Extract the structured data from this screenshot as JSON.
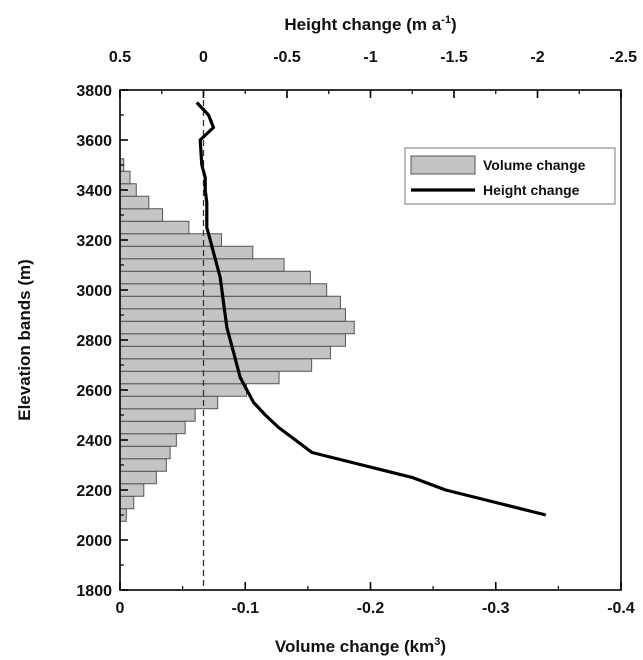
{
  "chart_data": {
    "type": "bar",
    "orientation": "horizontal",
    "dual_x_axes": true,
    "y_axis": {
      "label": "Elevation bands (m)",
      "ylim": [
        1800,
        3800
      ],
      "ticks": [
        1800,
        2000,
        2200,
        2400,
        2600,
        2800,
        3000,
        3200,
        3400,
        3600,
        3800
      ]
    },
    "bottom_axis": {
      "label": "Volume change (km³)",
      "label_parts": {
        "main": "Volume change (km",
        "sup": "3",
        "end": ")"
      },
      "xlim": [
        0,
        -0.4
      ],
      "ticks": [
        0,
        -0.1,
        -0.2,
        -0.3,
        -0.4
      ],
      "tick_labels": [
        "0",
        "-0.1",
        "-0.2",
        "-0.3",
        "-0.4"
      ]
    },
    "top_axis": {
      "label": "Height change (m a⁻¹)",
      "label_parts": {
        "main": "Height change (m a",
        "sup": "-1",
        "end": ")"
      },
      "xlim": [
        0.5,
        -2.5
      ],
      "ticks": [
        0.5,
        0,
        -0.5,
        -1,
        -1.5,
        -2,
        -2.5
      ],
      "tick_labels": [
        "0.5",
        "0",
        "-0.5",
        "-1",
        "-1.5",
        "-2",
        "-2.5"
      ]
    },
    "series": [
      {
        "name": "Volume change",
        "kind": "bar",
        "color": "#c4c4c4",
        "band_width": 50,
        "points": [
          {
            "y": 2100,
            "x": -0.005
          },
          {
            "y": 2150,
            "x": -0.011
          },
          {
            "y": 2200,
            "x": -0.019
          },
          {
            "y": 2250,
            "x": -0.029
          },
          {
            "y": 2300,
            "x": -0.037
          },
          {
            "y": 2350,
            "x": -0.04
          },
          {
            "y": 2400,
            "x": -0.045
          },
          {
            "y": 2450,
            "x": -0.052
          },
          {
            "y": 2500,
            "x": -0.06
          },
          {
            "y": 2550,
            "x": -0.078
          },
          {
            "y": 2600,
            "x": -0.101
          },
          {
            "y": 2650,
            "x": -0.127
          },
          {
            "y": 2700,
            "x": -0.153
          },
          {
            "y": 2750,
            "x": -0.168
          },
          {
            "y": 2800,
            "x": -0.18
          },
          {
            "y": 2850,
            "x": -0.187
          },
          {
            "y": 2900,
            "x": -0.18
          },
          {
            "y": 2950,
            "x": -0.176
          },
          {
            "y": 3000,
            "x": -0.165
          },
          {
            "y": 3050,
            "x": -0.152
          },
          {
            "y": 3100,
            "x": -0.131
          },
          {
            "y": 3150,
            "x": -0.106
          },
          {
            "y": 3200,
            "x": -0.081
          },
          {
            "y": 3250,
            "x": -0.055
          },
          {
            "y": 3300,
            "x": -0.034
          },
          {
            "y": 3350,
            "x": -0.023
          },
          {
            "y": 3400,
            "x": -0.013
          },
          {
            "y": 3450,
            "x": -0.008
          },
          {
            "y": 3500,
            "x": -0.003
          }
        ]
      },
      {
        "name": "Height change",
        "kind": "line",
        "color": "#000000",
        "points": [
          {
            "y": 2100,
            "x": -2.05
          },
          {
            "y": 2150,
            "x": -1.75
          },
          {
            "y": 2200,
            "x": -1.45
          },
          {
            "y": 2250,
            "x": -1.25
          },
          {
            "y": 2300,
            "x": -0.95
          },
          {
            "y": 2350,
            "x": -0.65
          },
          {
            "y": 2400,
            "x": -0.55
          },
          {
            "y": 2450,
            "x": -0.45
          },
          {
            "y": 2500,
            "x": -0.37
          },
          {
            "y": 2550,
            "x": -0.3
          },
          {
            "y": 2600,
            "x": -0.26
          },
          {
            "y": 2650,
            "x": -0.22
          },
          {
            "y": 2700,
            "x": -0.2
          },
          {
            "y": 2750,
            "x": -0.18
          },
          {
            "y": 2800,
            "x": -0.16
          },
          {
            "y": 2850,
            "x": -0.14
          },
          {
            "y": 2900,
            "x": -0.13
          },
          {
            "y": 2950,
            "x": -0.12
          },
          {
            "y": 3000,
            "x": -0.11
          },
          {
            "y": 3050,
            "x": -0.1
          },
          {
            "y": 3100,
            "x": -0.08
          },
          {
            "y": 3150,
            "x": -0.06
          },
          {
            "y": 3200,
            "x": -0.04
          },
          {
            "y": 3250,
            "x": -0.02
          },
          {
            "y": 3300,
            "x": -0.02
          },
          {
            "y": 3350,
            "x": -0.02
          },
          {
            "y": 3400,
            "x": -0.01
          },
          {
            "y": 3450,
            "x": -0.01
          },
          {
            "y": 3500,
            "x": 0.01
          },
          {
            "y": 3600,
            "x": 0.02
          },
          {
            "y": 3650,
            "x": -0.06
          },
          {
            "y": 3700,
            "x": -0.03
          },
          {
            "y": 3750,
            "x": 0.04
          }
        ]
      }
    ],
    "reference_line": {
      "axis": "top",
      "x": 0,
      "style": "dashed"
    },
    "legend": {
      "position": "top-right"
    },
    "grid": false
  }
}
